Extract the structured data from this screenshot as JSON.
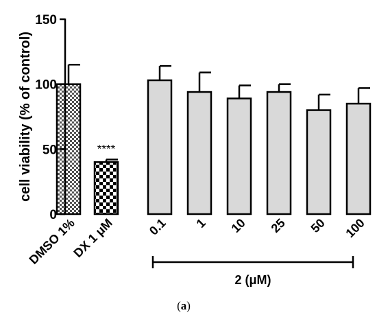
{
  "chart_data": {
    "type": "bar",
    "ylabel": "cell viability (% of control)",
    "ylim": [
      0,
      150
    ],
    "yticks": [
      0,
      50,
      100,
      150
    ],
    "categories": [
      "DMSO 1%",
      "DX 1 μM",
      "0.1",
      "1",
      "10",
      "25",
      "50",
      "100"
    ],
    "values": [
      100,
      40,
      103,
      94,
      89,
      94,
      80,
      85
    ],
    "errors": [
      15,
      2,
      11,
      15,
      10,
      6,
      12,
      12
    ],
    "bar_fills": [
      "checker-fine",
      "checker-coarse",
      "#d9d9d9",
      "#d9d9d9",
      "#d9d9d9",
      "#d9d9d9",
      "#d9d9d9",
      "#d9d9d9"
    ],
    "annotations": [
      {
        "category": "DX 1 μM",
        "text": "****"
      }
    ],
    "group_bracket": {
      "label": "2 (μM)",
      "from": "0.1",
      "to": "100"
    }
  },
  "caption": {
    "prefix": "(",
    "letter": "a",
    "suffix": ")"
  }
}
